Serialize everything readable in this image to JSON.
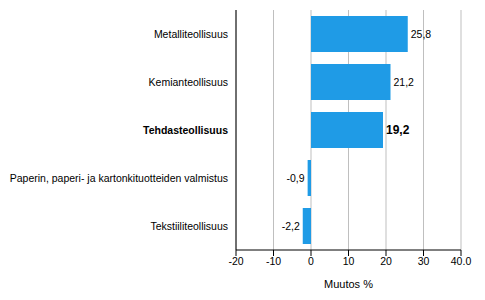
{
  "chart_data": {
    "type": "bar",
    "orientation": "horizontal",
    "categories": [
      "Metalliteollisuus",
      "Kemianteollisuus",
      "Tehdasteollisuus",
      "Paperin, paperi- ja kartonkituotteiden valmistus",
      "Tekstiiliteollisuus"
    ],
    "values": [
      25.8,
      21.2,
      19.2,
      -0.9,
      -2.2
    ],
    "value_labels": [
      "25,8",
      "21,2",
      "19,2",
      "-0,9",
      "-2,2"
    ],
    "data_labels": true,
    "color": "#1f9be6",
    "xlabel": "Muutos %",
    "xlim": [
      -20,
      40
    ],
    "xticks": [
      -20,
      -10,
      0,
      10,
      20,
      30,
      {
        "value": 40,
        "label": "40.0"
      }
    ],
    "grid": true
  }
}
